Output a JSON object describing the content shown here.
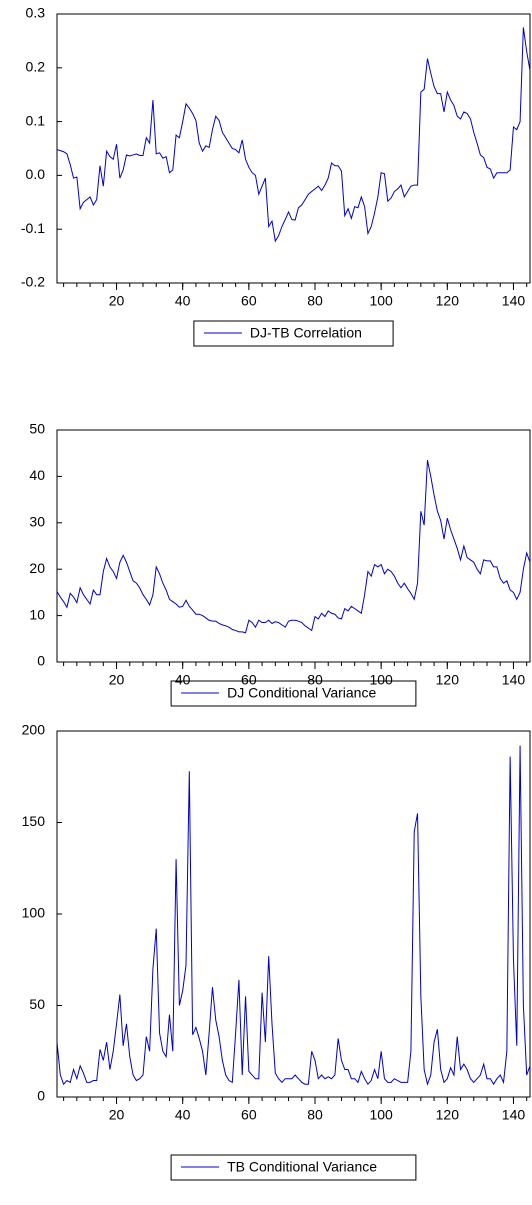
{
  "chart_data": [
    {
      "type": "line",
      "x": [
        2,
        3,
        4,
        5,
        6,
        7,
        8,
        9,
        10,
        11,
        12,
        13,
        14,
        15,
        16,
        17,
        18,
        19,
        20,
        21,
        22,
        23,
        24,
        25,
        26,
        27,
        28,
        29,
        30,
        31,
        32,
        33,
        34,
        35,
        36,
        37,
        38,
        39,
        40,
        41,
        42,
        43,
        44,
        45,
        46,
        47,
        48,
        49,
        50,
        51,
        52,
        53,
        54,
        55,
        56,
        57,
        58,
        59,
        60,
        61,
        62,
        63,
        64,
        65,
        66,
        67,
        68,
        69,
        70,
        71,
        72,
        73,
        74,
        75,
        76,
        77,
        78,
        79,
        80,
        81,
        82,
        83,
        84,
        85,
        86,
        87,
        88,
        89,
        90,
        91,
        92,
        93,
        94,
        95,
        96,
        97,
        98,
        99,
        100,
        101,
        102,
        103,
        104,
        105,
        106,
        107,
        108,
        109,
        110,
        111,
        112,
        113,
        114,
        115,
        116,
        117,
        118,
        119,
        120,
        121,
        122,
        123,
        124,
        125,
        126,
        127,
        128,
        129,
        130,
        131,
        132,
        133,
        134,
        135,
        136,
        137,
        138,
        139,
        140,
        141,
        142,
        143,
        144,
        145
      ],
      "series": [
        {
          "name": "DJ-TB Correlation",
          "color": "#0000cc",
          "values": [
            0.048,
            0.046,
            0.044,
            0.04,
            0.02,
            -0.005,
            -0.003,
            -0.062,
            -0.05,
            -0.045,
            -0.04,
            -0.055,
            -0.045,
            0.018,
            -0.02,
            0.045,
            0.035,
            0.03,
            0.058,
            -0.005,
            0.01,
            0.038,
            0.036,
            0.038,
            0.04,
            0.037,
            0.037,
            0.07,
            0.06,
            0.14,
            0.04,
            0.042,
            0.032,
            0.035,
            0.005,
            0.01,
            0.075,
            0.07,
            0.1,
            0.133,
            0.125,
            0.115,
            0.102,
            0.06,
            0.045,
            0.055,
            0.052,
            0.085,
            0.11,
            0.102,
            0.08,
            0.07,
            0.06,
            0.05,
            0.048,
            0.042,
            0.066,
            0.03,
            0.015,
            0.005,
            0.0,
            -0.035,
            -0.02,
            -0.005,
            -0.095,
            -0.085,
            -0.122,
            -0.112,
            -0.095,
            -0.082,
            -0.068,
            -0.082,
            -0.083,
            -0.06,
            -0.055,
            -0.045,
            -0.035,
            -0.03,
            -0.025,
            -0.02,
            -0.028,
            -0.018,
            -0.005,
            0.023,
            0.018,
            0.018,
            0.008,
            -0.075,
            -0.062,
            -0.08,
            -0.058,
            -0.06,
            -0.04,
            -0.058,
            -0.108,
            -0.095,
            -0.07,
            -0.04,
            0.005,
            0.003,
            -0.048,
            -0.042,
            -0.03,
            -0.025,
            -0.018,
            -0.04,
            -0.03,
            -0.02,
            -0.018,
            -0.018,
            0.155,
            0.16,
            0.217,
            0.19,
            0.165,
            0.152,
            0.152,
            0.118,
            0.155,
            0.14,
            0.13,
            0.11,
            0.105,
            0.118,
            0.115,
            0.105,
            0.08,
            0.06,
            0.038,
            0.033,
            0.015,
            0.012,
            -0.005,
            0.005,
            0.005,
            0.005,
            0.005,
            0.01,
            0.09,
            0.085,
            0.1,
            0.275,
            0.23,
            0.195
          ]
        }
      ],
      "xlim": [
        2,
        145
      ],
      "xticks": [
        20,
        40,
        60,
        80,
        100,
        120,
        140
      ],
      "ylim": [
        -0.2,
        0.3
      ],
      "yticks": [
        -0.2,
        -0.1,
        {
          "value": 0,
          "label": "0.0"
        },
        0.1,
        0.2,
        0.3
      ]
    },
    {
      "type": "line",
      "x": [
        2,
        3,
        4,
        5,
        6,
        7,
        8,
        9,
        10,
        11,
        12,
        13,
        14,
        15,
        16,
        17,
        18,
        19,
        20,
        21,
        22,
        23,
        24,
        25,
        26,
        27,
        28,
        29,
        30,
        31,
        32,
        33,
        34,
        35,
        36,
        37,
        38,
        39,
        40,
        41,
        42,
        43,
        44,
        45,
        46,
        47,
        48,
        49,
        50,
        51,
        52,
        53,
        54,
        55,
        56,
        57,
        58,
        59,
        60,
        61,
        62,
        63,
        64,
        65,
        66,
        67,
        68,
        69,
        70,
        71,
        72,
        73,
        74,
        75,
        76,
        77,
        78,
        79,
        80,
        81,
        82,
        83,
        84,
        85,
        86,
        87,
        88,
        89,
        90,
        91,
        92,
        93,
        94,
        95,
        96,
        97,
        98,
        99,
        100,
        101,
        102,
        103,
        104,
        105,
        106,
        107,
        108,
        109,
        110,
        111,
        112,
        113,
        114,
        115,
        116,
        117,
        118,
        119,
        120,
        121,
        122,
        123,
        124,
        125,
        126,
        127,
        128,
        129,
        130,
        131,
        132,
        133,
        134,
        135,
        136,
        137,
        138,
        139,
        140,
        141,
        142,
        143,
        144,
        145
      ],
      "series": [
        {
          "name": "DJ Conditional Variance",
          "color": "#0000cc",
          "values": [
            15.2,
            14,
            13,
            11.8,
            14.8,
            14,
            12.8,
            16,
            14.5,
            13.5,
            12.5,
            15.5,
            14.5,
            14.5,
            19.5,
            22.3,
            20.5,
            19.5,
            18,
            21.5,
            23,
            21.5,
            19.5,
            17.5,
            17,
            16,
            14.5,
            13.5,
            12.3,
            14.5,
            20.5,
            19,
            17,
            15.5,
            13.5,
            13,
            12.5,
            11.8,
            12,
            13.3,
            12,
            11.2,
            10.3,
            10.3,
            10,
            9.5,
            9,
            8.8,
            8.8,
            8.3,
            8,
            7.8,
            7.5,
            7,
            6.8,
            6.5,
            6.5,
            6.3,
            9,
            8.5,
            7.5,
            9,
            8.5,
            8.5,
            9,
            8.3,
            8.7,
            8.5,
            8,
            7.5,
            8.8,
            9,
            9,
            8.8,
            8.5,
            7.8,
            7.3,
            6.8,
            9.8,
            9.3,
            10.5,
            9.8,
            11,
            10.5,
            10.3,
            9.5,
            9.3,
            11.5,
            11,
            12,
            11.5,
            11,
            10.5,
            14.5,
            19.5,
            18.5,
            21,
            20.5,
            21,
            19,
            20,
            19.5,
            18.5,
            17,
            16,
            17,
            15.8,
            14.8,
            13.5,
            17,
            32.5,
            29.5,
            43.5,
            40,
            36,
            32.5,
            30.5,
            26.5,
            31,
            28.5,
            26.5,
            24.5,
            22,
            25,
            22.5,
            22,
            21.5,
            20,
            19,
            22,
            21.8,
            21.8,
            20.5,
            20.5,
            18,
            17,
            17.5,
            15.5,
            15,
            13.5,
            15,
            20,
            23.5,
            21.5
          ]
        }
      ],
      "xlim": [
        2,
        145
      ],
      "xticks": [
        20,
        40,
        60,
        80,
        100,
        120,
        140
      ],
      "ylim": [
        0,
        50
      ],
      "yticks": [
        0,
        10,
        20,
        30,
        40,
        50
      ]
    },
    {
      "type": "line",
      "x": [
        2,
        3,
        4,
        5,
        6,
        7,
        8,
        9,
        10,
        11,
        12,
        13,
        14,
        15,
        16,
        17,
        18,
        19,
        20,
        21,
        22,
        23,
        24,
        25,
        26,
        27,
        28,
        29,
        30,
        31,
        32,
        33,
        34,
        35,
        36,
        37,
        38,
        39,
        40,
        41,
        42,
        43,
        44,
        45,
        46,
        47,
        48,
        49,
        50,
        51,
        52,
        53,
        54,
        55,
        56,
        57,
        58,
        59,
        60,
        61,
        62,
        63,
        64,
        65,
        66,
        67,
        68,
        69,
        70,
        71,
        72,
        73,
        74,
        75,
        76,
        77,
        78,
        79,
        80,
        81,
        82,
        83,
        84,
        85,
        86,
        87,
        88,
        89,
        90,
        91,
        92,
        93,
        94,
        95,
        96,
        97,
        98,
        99,
        100,
        101,
        102,
        103,
        104,
        105,
        106,
        107,
        108,
        109,
        110,
        111,
        112,
        113,
        114,
        115,
        116,
        117,
        118,
        119,
        120,
        121,
        122,
        123,
        124,
        125,
        126,
        127,
        128,
        129,
        130,
        131,
        132,
        133,
        134,
        135,
        136,
        137,
        138,
        139,
        140,
        141,
        142,
        143,
        144,
        145
      ],
      "series": [
        {
          "name": "TB Conditional Variance",
          "color": "#0000cc",
          "values": [
            30,
            12,
            7,
            9,
            8,
            15,
            10,
            17,
            13,
            8,
            8,
            9,
            9,
            26,
            20,
            30,
            15,
            25,
            40,
            56,
            28,
            40,
            22,
            12,
            9,
            10,
            12,
            33,
            25,
            70,
            92,
            35,
            25,
            22,
            45,
            25,
            130,
            50,
            58,
            72,
            178,
            34,
            38,
            32,
            25,
            12,
            35,
            60,
            42,
            33,
            20,
            12,
            9,
            8,
            35,
            64,
            12,
            55,
            14,
            12,
            10,
            10,
            57,
            30,
            77,
            40,
            13,
            10,
            8,
            10,
            10,
            10,
            12,
            10,
            8,
            7,
            7,
            25,
            20,
            10,
            12,
            10,
            11,
            10,
            12,
            32,
            20,
            15,
            15,
            10,
            10,
            8,
            14,
            10,
            7,
            9,
            15,
            10,
            25,
            10,
            8,
            8,
            10,
            9,
            8,
            8,
            8,
            25,
            145,
            155,
            55,
            15,
            7,
            12,
            30,
            37,
            15,
            8,
            10,
            16,
            12,
            33,
            15,
            18,
            15,
            10,
            8,
            10,
            12,
            18,
            10,
            10,
            7,
            10,
            12,
            8,
            25,
            186,
            75,
            28,
            192,
            50,
            12,
            17
          ]
        }
      ],
      "xlim": [
        2,
        145
      ],
      "xticks": [
        20,
        40,
        60,
        80,
        100,
        120,
        140
      ],
      "ylim": [
        0,
        200
      ],
      "yticks": [
        0,
        50,
        100,
        150,
        200
      ]
    }
  ]
}
